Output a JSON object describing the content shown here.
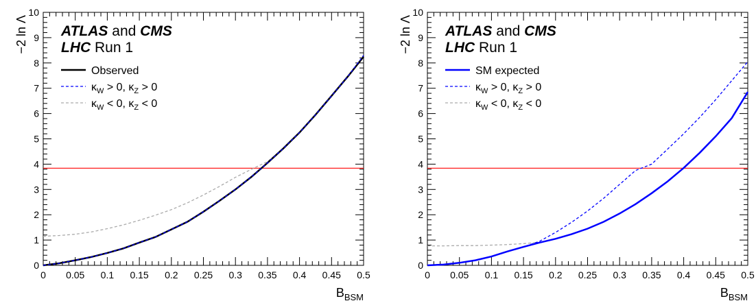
{
  "chart_data": [
    {
      "type": "line",
      "experiment": {
        "name1": "ATLAS",
        "conj": "and",
        "name2": "CMS",
        "name3": "LHC",
        "run": "Run 1"
      },
      "xlabel": {
        "main": "B",
        "sub": "BSM"
      },
      "ylabel": "−2 ln Λ",
      "xlim": [
        0,
        0.5
      ],
      "ylim": [
        0,
        10
      ],
      "xticks": [
        "0",
        "0.05",
        "0.1",
        "0.15",
        "0.2",
        "0.25",
        "0.3",
        "0.35",
        "0.4",
        "0.45",
        "0.5"
      ],
      "yticks": [
        "0",
        "1",
        "2",
        "3",
        "4",
        "5",
        "6",
        "7",
        "8",
        "9",
        "10"
      ],
      "hline": {
        "y": 3.84,
        "color": "#ff0000"
      },
      "legend_position": "top-left",
      "series": [
        {
          "label": "Observed",
          "style": "solid",
          "color": "#000000",
          "x": [
            0,
            0.025,
            0.05,
            0.075,
            0.1,
            0.125,
            0.15,
            0.175,
            0.2,
            0.225,
            0.25,
            0.275,
            0.3,
            0.325,
            0.35,
            0.375,
            0.4,
            0.425,
            0.45,
            0.475,
            0.5
          ],
          "y": [
            0,
            0.08,
            0.2,
            0.33,
            0.49,
            0.67,
            0.9,
            1.12,
            1.42,
            1.72,
            2.12,
            2.55,
            3.0,
            3.5,
            4.05,
            4.63,
            5.25,
            5.95,
            6.7,
            7.45,
            8.25
          ]
        },
        {
          "label": {
            "k1": "κ",
            "s1": "W",
            "r1": " > 0, ",
            "k2": "κ",
            "s2": "Z",
            "r2": " > 0"
          },
          "style": "dashed",
          "color": "#0000ff",
          "x": [
            0,
            0.025,
            0.05,
            0.075,
            0.1,
            0.125,
            0.15,
            0.175,
            0.2,
            0.225,
            0.25,
            0.275,
            0.3,
            0.325,
            0.35,
            0.375,
            0.4,
            0.425,
            0.45,
            0.475,
            0.5
          ],
          "y": [
            0,
            0.08,
            0.2,
            0.33,
            0.49,
            0.67,
            0.9,
            1.12,
            1.42,
            1.72,
            2.12,
            2.55,
            3.0,
            3.5,
            4.05,
            4.63,
            5.25,
            5.95,
            6.7,
            7.45,
            8.3
          ]
        },
        {
          "label": {
            "k1": "κ",
            "s1": "W",
            "r1": " < 0, ",
            "k2": "κ",
            "s2": "Z",
            "r2": " < 0"
          },
          "style": "dashed",
          "color": "#aaaaaa",
          "x": [
            0,
            0.025,
            0.05,
            0.075,
            0.1,
            0.125,
            0.15,
            0.175,
            0.2,
            0.225,
            0.25,
            0.275,
            0.3,
            0.325,
            0.35,
            0.375,
            0.4,
            0.425,
            0.45,
            0.475,
            0.5
          ],
          "y": [
            1.15,
            1.18,
            1.23,
            1.32,
            1.45,
            1.6,
            1.78,
            1.98,
            2.2,
            2.47,
            2.78,
            3.12,
            3.48,
            3.8,
            4.1,
            4.63,
            5.25,
            5.95,
            6.7,
            7.45,
            8.3
          ]
        }
      ]
    },
    {
      "type": "line",
      "experiment": {
        "name1": "ATLAS",
        "conj": "and",
        "name2": "CMS",
        "name3": "LHC",
        "run": "Run 1"
      },
      "xlabel": {
        "main": "B",
        "sub": "BSM"
      },
      "ylabel": "−2 ln Λ",
      "xlim": [
        0,
        0.5
      ],
      "ylim": [
        0,
        10
      ],
      "xticks": [
        "0",
        "0.05",
        "0.1",
        "0.15",
        "0.2",
        "0.25",
        "0.3",
        "0.35",
        "0.4",
        "0.45",
        "0.5"
      ],
      "yticks": [
        "0",
        "1",
        "2",
        "3",
        "4",
        "5",
        "6",
        "7",
        "8",
        "9",
        "10"
      ],
      "hline": {
        "y": 3.84,
        "color": "#ff0000"
      },
      "legend_position": "top-left",
      "series": [
        {
          "label": "SM expected",
          "style": "solid",
          "color": "#0000ff",
          "x": [
            0,
            0.025,
            0.05,
            0.075,
            0.1,
            0.125,
            0.15,
            0.175,
            0.2,
            0.225,
            0.25,
            0.275,
            0.3,
            0.325,
            0.35,
            0.375,
            0.4,
            0.425,
            0.45,
            0.475,
            0.5
          ],
          "y": [
            0,
            0.03,
            0.1,
            0.2,
            0.35,
            0.55,
            0.73,
            0.9,
            1.05,
            1.23,
            1.45,
            1.72,
            2.05,
            2.42,
            2.85,
            3.32,
            3.85,
            4.45,
            5.1,
            5.82,
            6.85
          ]
        },
        {
          "label": {
            "k1": "κ",
            "s1": "W",
            "r1": " > 0, ",
            "k2": "κ",
            "s2": "Z",
            "r2": " > 0"
          },
          "style": "dashed",
          "color": "#0000ff",
          "x": [
            0,
            0.025,
            0.05,
            0.075,
            0.1,
            0.125,
            0.15,
            0.175,
            0.2,
            0.225,
            0.25,
            0.275,
            0.3,
            0.325,
            0.35,
            0.375,
            0.4,
            0.425,
            0.45,
            0.475,
            0.5
          ],
          "y": [
            0,
            0.03,
            0.1,
            0.2,
            0.35,
            0.55,
            0.73,
            0.95,
            1.3,
            1.7,
            2.15,
            2.65,
            3.2,
            3.75,
            4.0,
            4.6,
            5.2,
            5.85,
            6.55,
            7.3,
            8.05
          ]
        },
        {
          "label": {
            "k1": "κ",
            "s1": "W",
            "r1": " < 0, ",
            "k2": "κ",
            "s2": "Z",
            "r2": " < 0"
          },
          "style": "dashed",
          "color": "#aaaaaa",
          "x": [
            0,
            0.025,
            0.05,
            0.075,
            0.1,
            0.125,
            0.15,
            0.175,
            0.2,
            0.225,
            0.25,
            0.275,
            0.3,
            0.325,
            0.35,
            0.375,
            0.4,
            0.425,
            0.45,
            0.475,
            0.5
          ],
          "y": [
            0.77,
            0.77,
            0.78,
            0.78,
            0.8,
            0.82,
            0.86,
            0.91,
            1.05,
            1.23,
            1.45,
            1.72,
            2.05,
            2.42,
            2.85,
            3.32,
            3.85,
            4.45,
            5.1,
            5.82,
            6.85
          ]
        }
      ]
    }
  ]
}
